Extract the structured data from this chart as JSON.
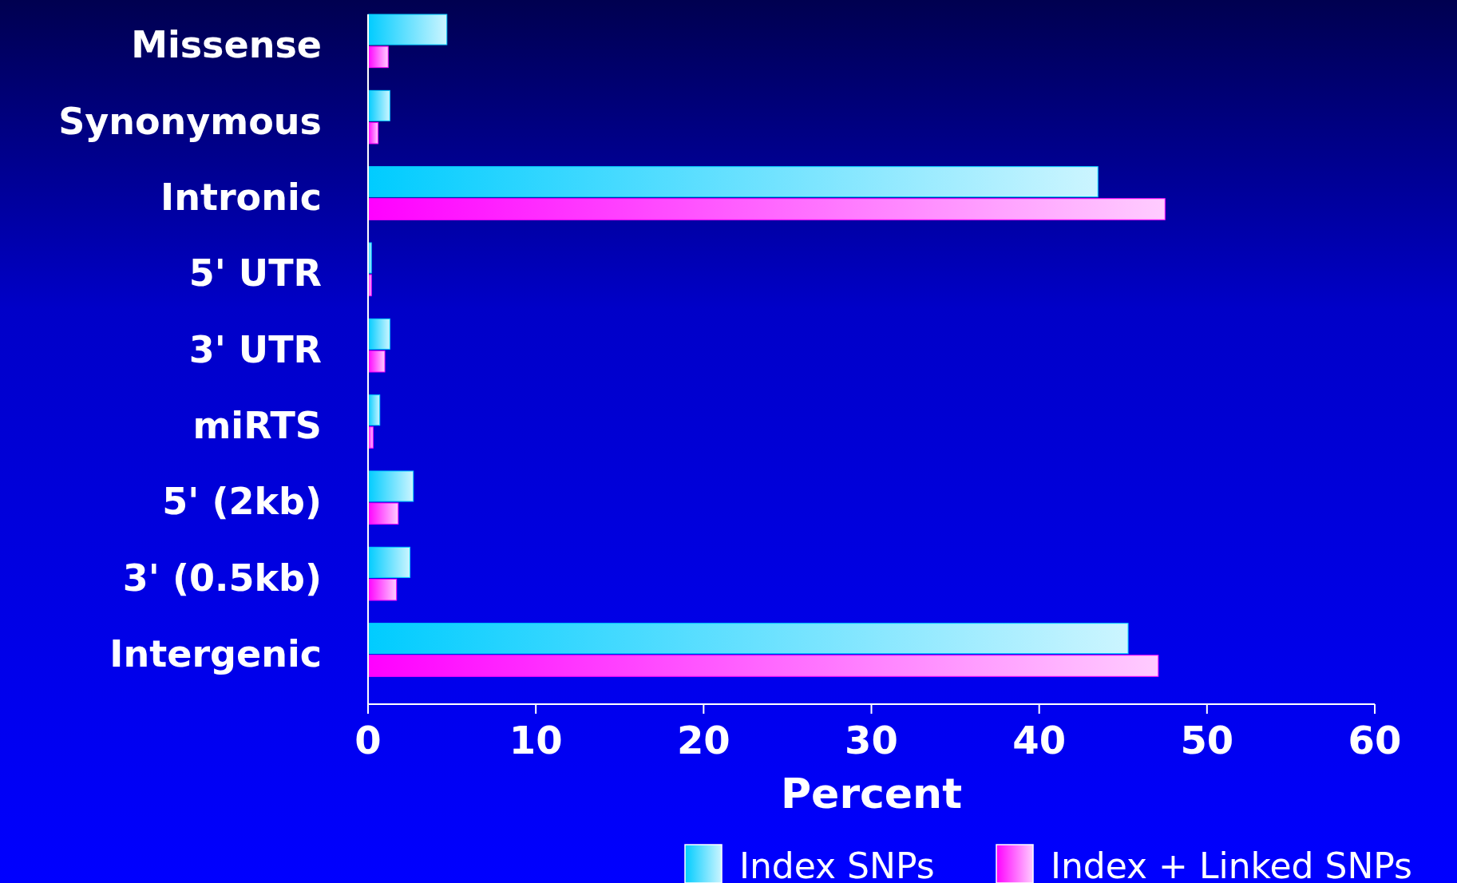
{
  "chart_data": {
    "type": "bar",
    "orientation": "horizontal",
    "xlabel": "Percent",
    "categories": [
      "Missense",
      "Synonymous",
      "Intronic",
      "5' UTR",
      "3' UTR",
      "miRTS",
      "5' (2kb)",
      "3' (0.5kb)",
      "Intergenic"
    ],
    "series": [
      {
        "name": "Index SNPs",
        "color": "#00ccff",
        "values": [
          4.7,
          1.3,
          43.5,
          0.2,
          1.3,
          0.7,
          2.7,
          2.5,
          45.3
        ]
      },
      {
        "name": "Index + Linked SNPs",
        "color": "#ff00ff",
        "values": [
          1.2,
          0.6,
          47.5,
          0.2,
          1.0,
          0.3,
          1.8,
          1.7,
          47.1
        ]
      }
    ],
    "xlim": [
      0,
      60
    ],
    "xticks": [
      0,
      10,
      20,
      30,
      40,
      50,
      60
    ],
    "grid": false,
    "legend": "bottom right"
  }
}
